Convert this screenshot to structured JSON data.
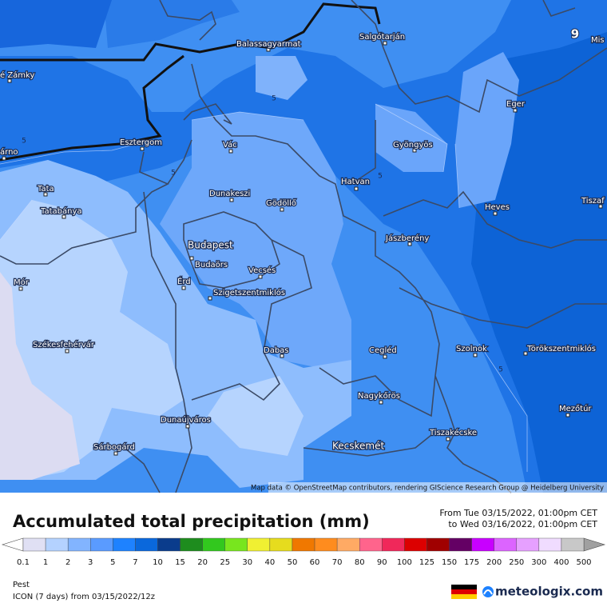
{
  "map": {
    "cities": [
      "é Zámky",
      "árno",
      "Balassagyarmat",
      "Salgótarján",
      "Mis",
      "Eger",
      "Esztergom",
      "Vác",
      "Gyöngyös",
      "Tata",
      "Dunakeszi",
      "Gödöllő",
      "Hatvan",
      "Heves",
      "Tiszaf",
      "Tatabánya",
      "Jászberény",
      "Budapest",
      "Budaörs",
      "Vecsés",
      "Mór",
      "Érd",
      "Szigetszentmiklós",
      "Székesfehérvár",
      "Dabas",
      "Cegléd",
      "Szolnok",
      "Törökszentmiklós",
      "Nagykőrös",
      "Mezőtúr",
      "Dunaújváros",
      "Tiszakécske",
      "Sárbogárd",
      "Kecskemét"
    ],
    "contour_labels": [
      "5",
      "5",
      "5",
      "5",
      "5"
    ],
    "marker_label": "9",
    "attribution": "Map data © OpenStreetMap contributors, rendering GIScience Research Group @ Heidelberg University"
  },
  "legend": {
    "title": "Accumulated total precipitation (mm)",
    "period": [
      "From Tue 03/15/2022, 01:00pm CET",
      "to Wed 03/16/2022, 01:00pm CET"
    ],
    "scale_labels": [
      0.1,
      1,
      2,
      3,
      5,
      7,
      10,
      15,
      20,
      25,
      30,
      40,
      50,
      60,
      70,
      80,
      90,
      100,
      125,
      150,
      175,
      200,
      250,
      300,
      400,
      500
    ],
    "colors": [
      "#e0e0f4",
      "#b4d2ff",
      "#82b4ff",
      "#5a9bff",
      "#1e82ff",
      "#0a68dc",
      "#0a3c8c",
      "#1e8c1e",
      "#32c81e",
      "#78e61e",
      "#f0f032",
      "#e6dc1e",
      "#f07800",
      "#ff8c1e",
      "#ffaa64",
      "#ff648c",
      "#f0285a",
      "#dc0000",
      "#a00000",
      "#640064",
      "#c800ff",
      "#dc64ff",
      "#e6a0ff",
      "#f0dcff",
      "#c8c8c8"
    ]
  },
  "footer": {
    "region": "Pest",
    "model": "ICON (7 days) from 03/15/2022/12z",
    "brand": "meteologix.com"
  }
}
